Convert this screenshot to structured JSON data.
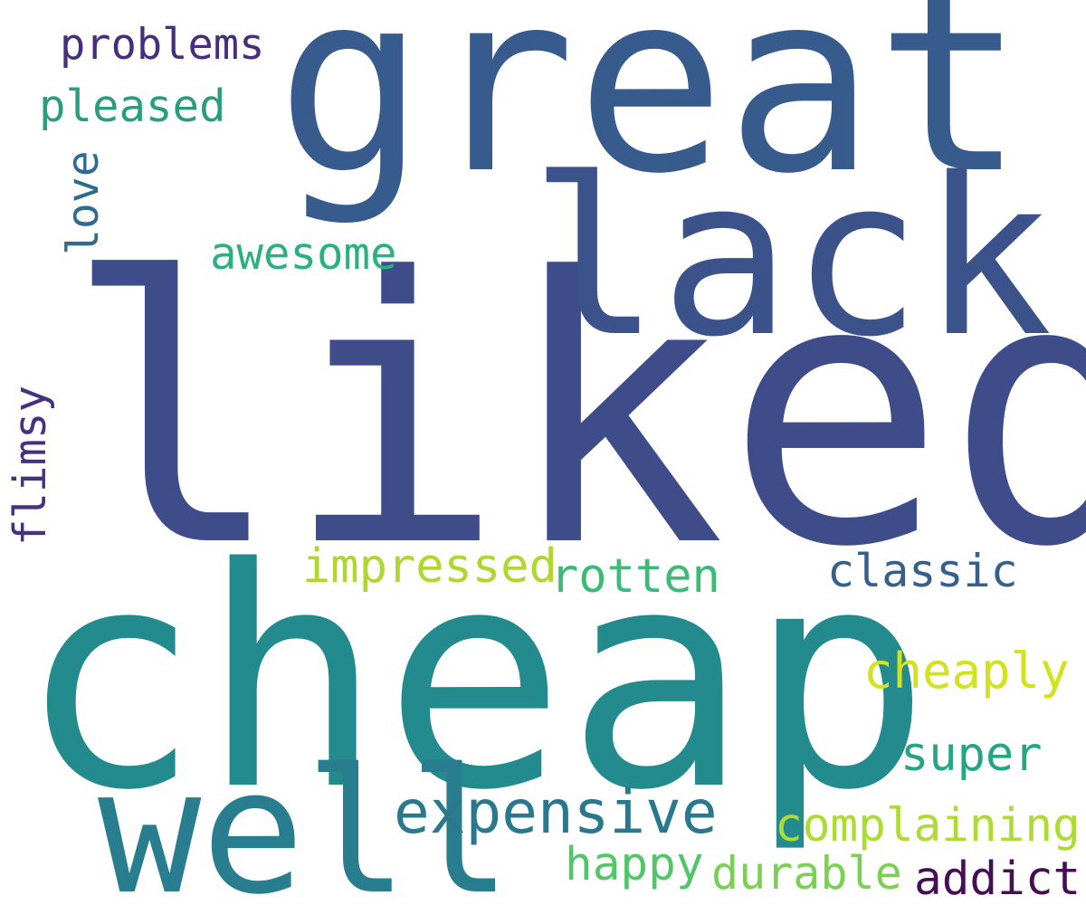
{
  "words": {
    "liked": {
      "text": "liked",
      "color": "#3e4c8a"
    },
    "great": {
      "text": "great",
      "color": "#375b8d"
    },
    "lack": {
      "text": "lack",
      "color": "#3b528b"
    },
    "cheap": {
      "text": "cheap",
      "color": "#238a8d"
    },
    "well": {
      "text": "well",
      "color": "#287d8e"
    },
    "expensive": {
      "text": "expensive",
      "color": "#2a788e"
    },
    "problems": {
      "text": "problems",
      "color": "#472d7b"
    },
    "pleased": {
      "text": "pleased",
      "color": "#2a9d7e"
    },
    "love": {
      "text": "love",
      "color": "#2f6b8e"
    },
    "awesome": {
      "text": "awesome",
      "color": "#2bb07f"
    },
    "flimsy": {
      "text": "flimsy",
      "color": "#46317e"
    },
    "impressed": {
      "text": "impressed",
      "color": "#b0d72f"
    },
    "rotten": {
      "text": "rotten",
      "color": "#3bbb75"
    },
    "classic": {
      "text": "classic",
      "color": "#355f8d"
    },
    "cheaply": {
      "text": "cheaply",
      "color": "#d2e21b"
    },
    "super": {
      "text": "super",
      "color": "#25a584"
    },
    "complaining": {
      "text": "complaining",
      "color": "#addc30"
    },
    "happy": {
      "text": "happy",
      "color": "#52c569"
    },
    "durable": {
      "text": "durable",
      "color": "#7ad151"
    },
    "addict": {
      "text": "addict",
      "color": "#440f55"
    }
  }
}
